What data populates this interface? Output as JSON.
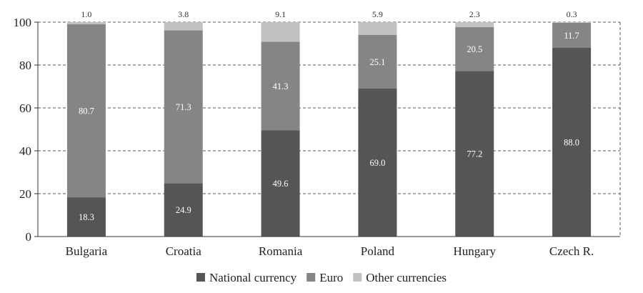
{
  "chart_data": {
    "type": "bar",
    "stacked": true,
    "categories": [
      "Bulgaria",
      "Croatia",
      "Romania",
      "Poland",
      "Hungary",
      "Czech R."
    ],
    "series": [
      {
        "name": "National currency",
        "color": "#555555",
        "values": [
          18.3,
          24.9,
          49.6,
          69.0,
          77.2,
          88.0
        ],
        "labels": [
          "18.3",
          "24.9",
          "49.6",
          "69.0",
          "77.2",
          "88.0"
        ]
      },
      {
        "name": "Euro",
        "color": "#858585",
        "values": [
          80.7,
          71.3,
          41.3,
          25.1,
          20.5,
          11.7
        ],
        "labels": [
          "80.7",
          "71.3",
          "41.3",
          "25.1",
          "20.5",
          "11.7"
        ]
      },
      {
        "name": "Other currencies",
        "color": "#c2c2c2",
        "values": [
          1.0,
          3.8,
          9.1,
          5.9,
          2.3,
          0.3
        ],
        "labels": [
          "1.0",
          "3.8",
          "9.1",
          "5.9",
          "2.3",
          "0.3"
        ]
      }
    ],
    "ylim": [
      0,
      100
    ],
    "yticks": [
      "0",
      "20",
      "40",
      "60",
      "80",
      "100"
    ],
    "grid": true,
    "legend_position": "bottom",
    "title": "",
    "xlabel": "",
    "ylabel": ""
  }
}
